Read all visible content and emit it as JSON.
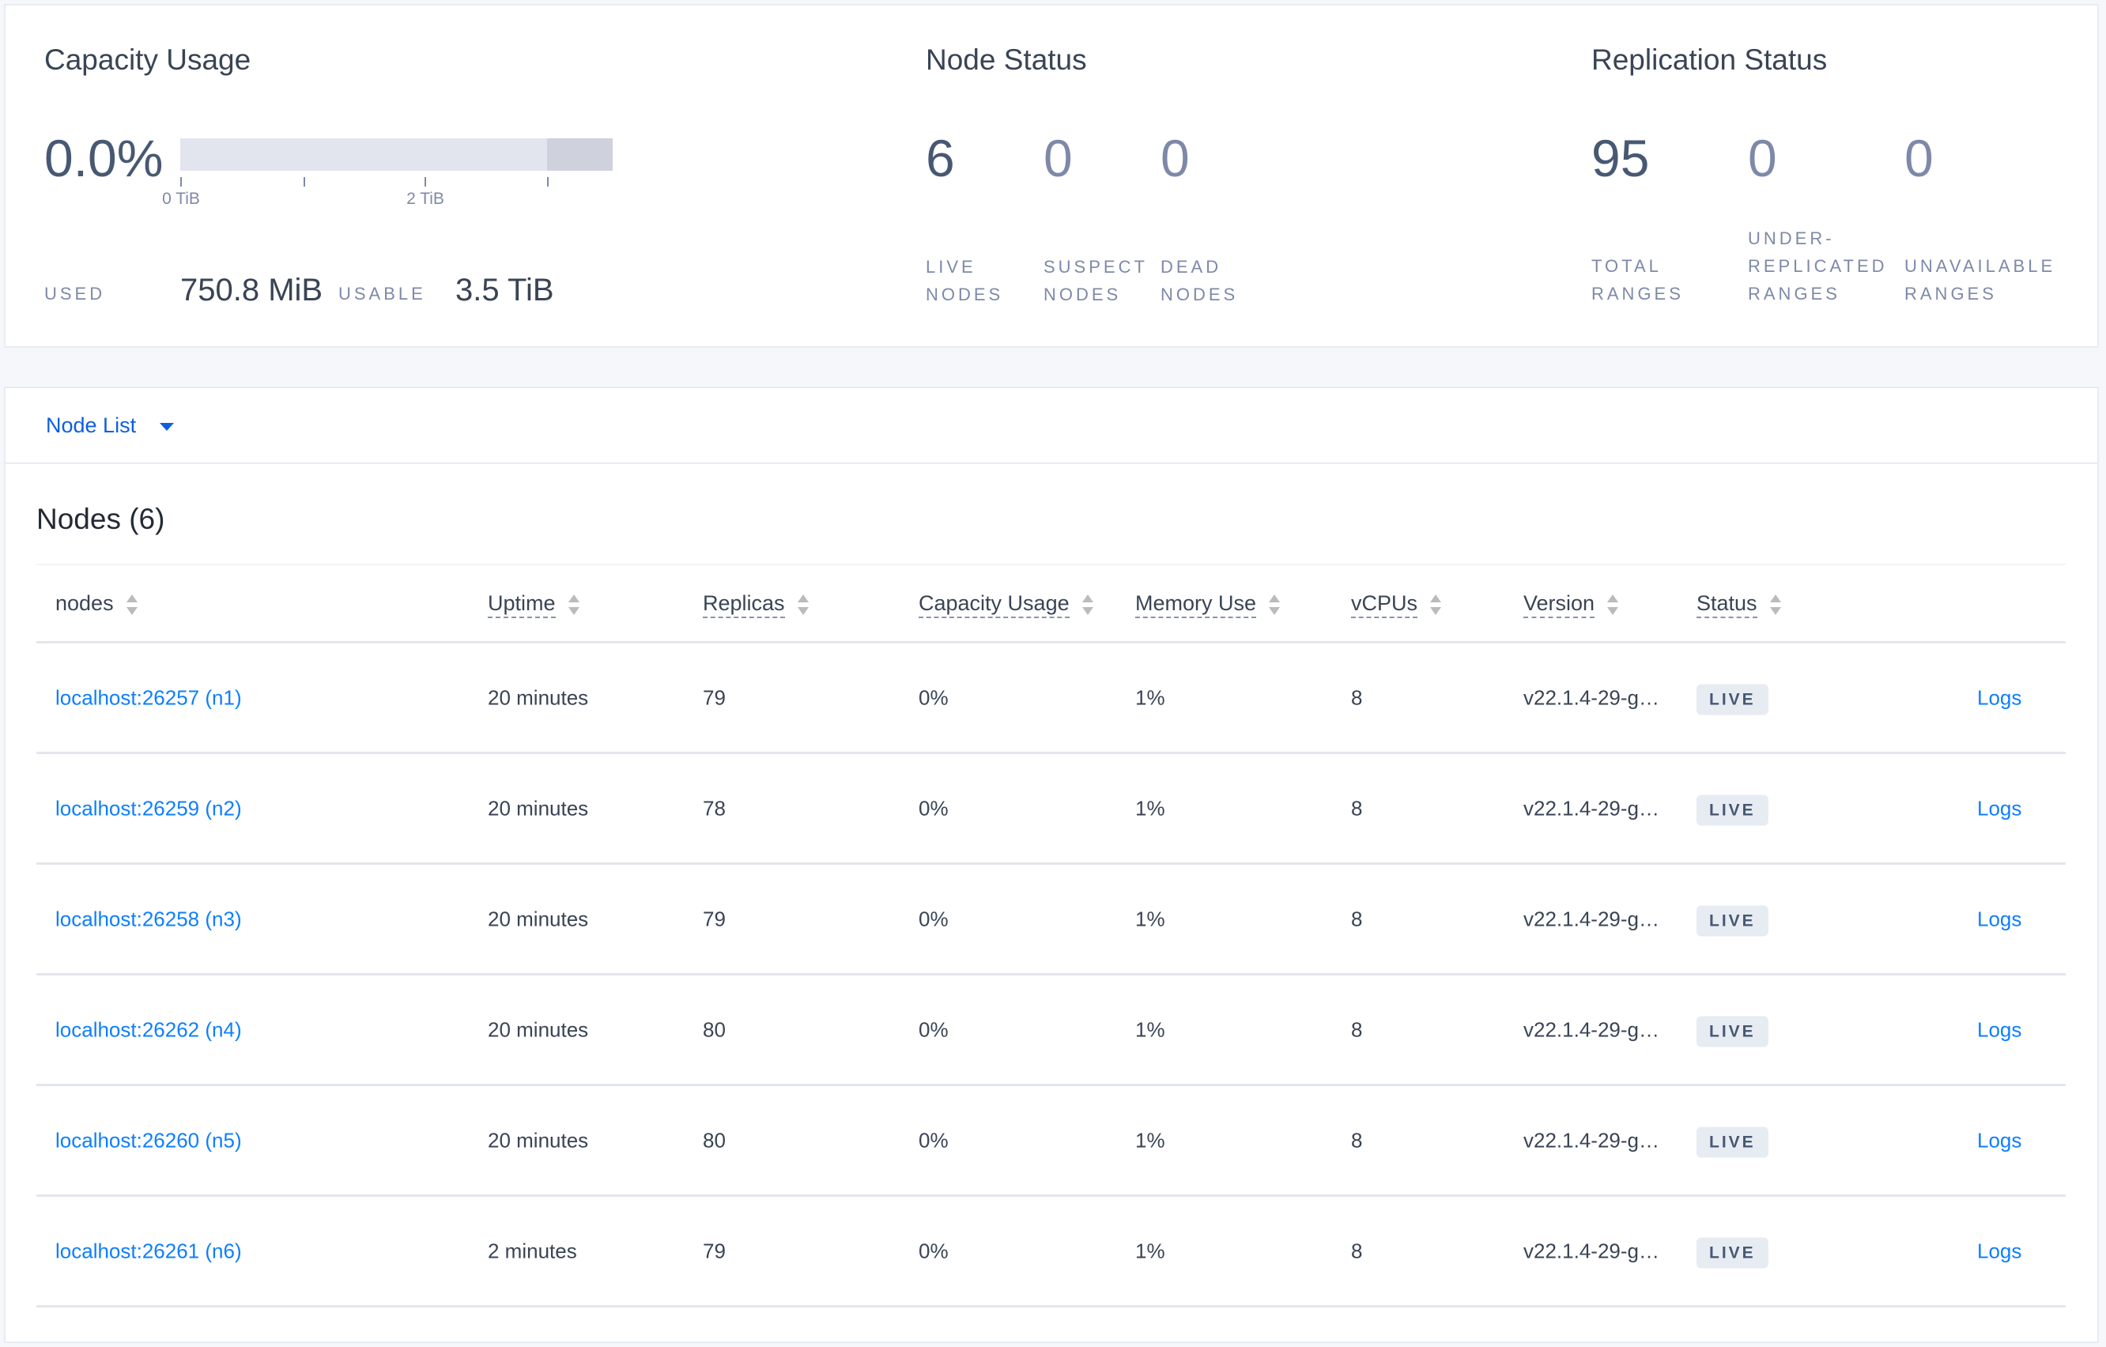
{
  "capacity": {
    "title": "Capacity Usage",
    "percent": "0.0%",
    "used_fraction": 0.0,
    "ticks": [
      "0 TiB",
      "2 TiB"
    ],
    "used_label": "USED",
    "used_value": "750.8 MiB",
    "usable_label": "USABLE",
    "usable_value": "3.5 TiB"
  },
  "node_status": {
    "title": "Node Status",
    "stats": [
      {
        "value": "6",
        "label1": "LIVE",
        "label2": "NODES"
      },
      {
        "value": "0",
        "label1": "SUSPECT",
        "label2": "NODES"
      },
      {
        "value": "0",
        "label1": "DEAD",
        "label2": "NODES"
      }
    ]
  },
  "replication": {
    "title": "Replication Status",
    "stats": [
      {
        "value": "95",
        "label1": "",
        "label2": "TOTAL",
        "label3": "RANGES"
      },
      {
        "value": "0",
        "label1": "UNDER-",
        "label2": "REPLICATED",
        "label3": "RANGES"
      },
      {
        "value": "0",
        "label1": "",
        "label2": "UNAVAILABLE",
        "label3": "RANGES"
      }
    ]
  },
  "view_selector": {
    "label": "Node List"
  },
  "table": {
    "title": "Nodes (6)",
    "columns": [
      "nodes",
      "Uptime",
      "Replicas",
      "Capacity Usage",
      "Memory Use",
      "vCPUs",
      "Version",
      "Status"
    ],
    "rows": [
      {
        "node": "localhost:26257 (n1)",
        "uptime": "20 minutes",
        "replicas": "79",
        "capacity": "0%",
        "memory": "1%",
        "vcpus": "8",
        "version": "v22.1.4-29-g…",
        "status": "LIVE",
        "logs": "Logs"
      },
      {
        "node": "localhost:26259 (n2)",
        "uptime": "20 minutes",
        "replicas": "78",
        "capacity": "0%",
        "memory": "1%",
        "vcpus": "8",
        "version": "v22.1.4-29-g…",
        "status": "LIVE",
        "logs": "Logs"
      },
      {
        "node": "localhost:26258 (n3)",
        "uptime": "20 minutes",
        "replicas": "79",
        "capacity": "0%",
        "memory": "1%",
        "vcpus": "8",
        "version": "v22.1.4-29-g…",
        "status": "LIVE",
        "logs": "Logs"
      },
      {
        "node": "localhost:26262 (n4)",
        "uptime": "20 minutes",
        "replicas": "80",
        "capacity": "0%",
        "memory": "1%",
        "vcpus": "8",
        "version": "v22.1.4-29-g…",
        "status": "LIVE",
        "logs": "Logs"
      },
      {
        "node": "localhost:26260 (n5)",
        "uptime": "20 minutes",
        "replicas": "80",
        "capacity": "0%",
        "memory": "1%",
        "vcpus": "8",
        "version": "v22.1.4-29-g…",
        "status": "LIVE",
        "logs": "Logs"
      },
      {
        "node": "localhost:26261 (n6)",
        "uptime": "2 minutes",
        "replicas": "79",
        "capacity": "0%",
        "memory": "1%",
        "vcpus": "8",
        "version": "v22.1.4-29-g…",
        "status": "LIVE",
        "logs": "Logs"
      }
    ]
  },
  "colors": {
    "link": "#0e7fff",
    "text": "#394455",
    "muted": "#7e89a9"
  }
}
